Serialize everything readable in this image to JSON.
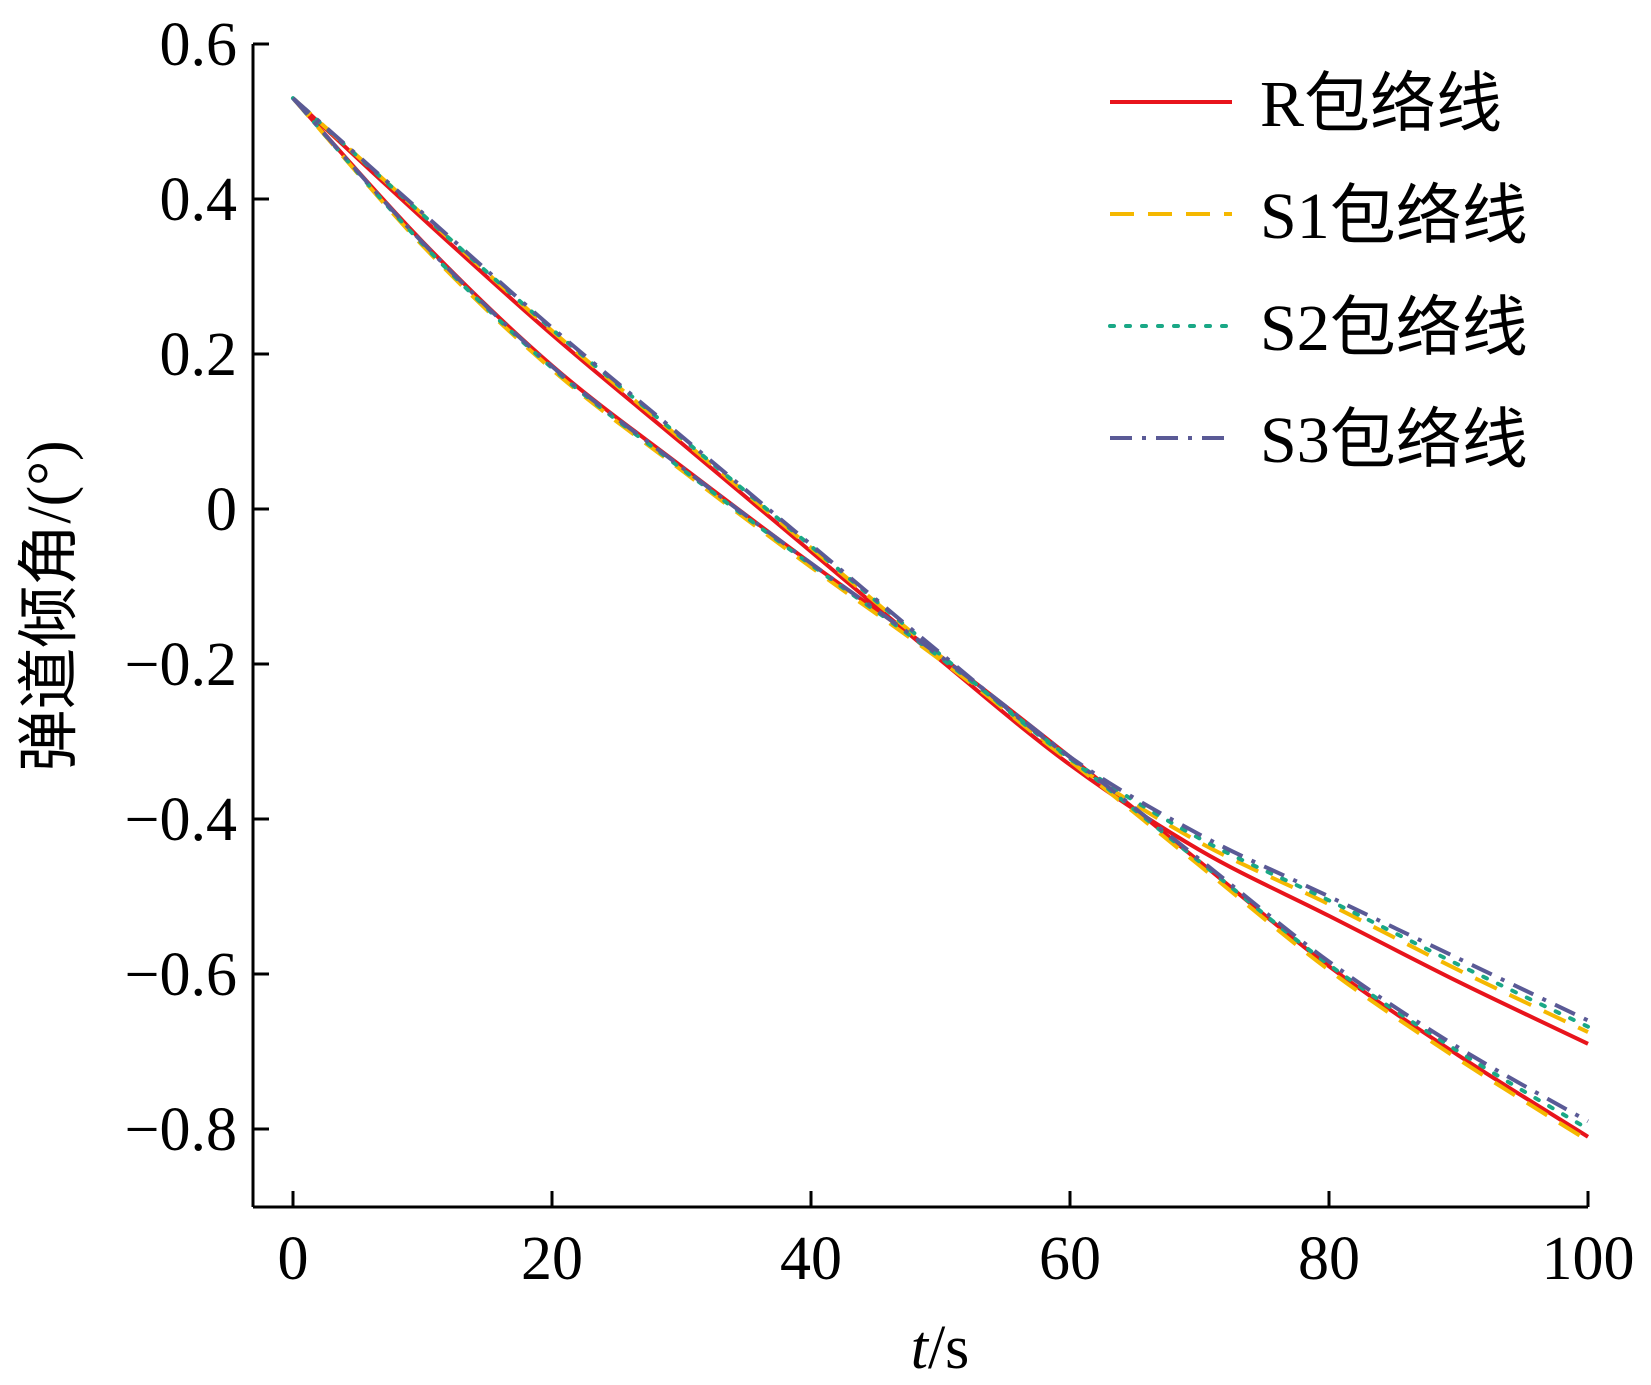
{
  "chart_data": {
    "type": "line",
    "title": "",
    "xlabel_italic": "t",
    "xlabel_unit": "/s",
    "ylabel": "弹道倾角/(°)",
    "xlim": [
      -1.5,
      102
    ],
    "ylim": [
      -0.9,
      0.6
    ],
    "xticks": [
      0,
      20,
      40,
      60,
      80,
      100
    ],
    "yticks": [
      0.6,
      0.4,
      0.2,
      0,
      -0.2,
      -0.4,
      -0.6,
      -0.8
    ],
    "ytick_labels": [
      "0.6",
      "0.4",
      "0.2",
      "0",
      "−0.2",
      "−0.4",
      "−0.6",
      "−0.8"
    ],
    "xtick_labels": [
      "0",
      "20",
      "40",
      "60",
      "80",
      "100"
    ],
    "legend_position": "top-right",
    "grid": false,
    "series": [
      {
        "name": "R包络线",
        "color": "#e8141c",
        "dash": "solid",
        "lower": {
          "x": [
            0,
            10,
            20,
            30,
            40,
            50,
            60,
            70,
            80,
            90,
            100
          ],
          "y": [
            0.53,
            0.345,
            0.185,
            0.055,
            -0.07,
            -0.19,
            -0.32,
            -0.455,
            -0.59,
            -0.705,
            -0.81
          ]
        },
        "upper": {
          "x": [
            0,
            10,
            20,
            30,
            40,
            50,
            60,
            70,
            80,
            90,
            100
          ],
          "y": [
            0.53,
            0.375,
            0.225,
            0.085,
            -0.055,
            -0.195,
            -0.33,
            -0.44,
            -0.525,
            -0.61,
            -0.69
          ]
        }
      },
      {
        "name": "S1包络线",
        "color": "#f5b800",
        "dash": "dashed",
        "lower": {
          "x": [
            0,
            10,
            20,
            30,
            40,
            50,
            60,
            70,
            80,
            90,
            100
          ],
          "y": [
            0.53,
            0.34,
            0.18,
            0.05,
            -0.075,
            -0.195,
            -0.325,
            -0.46,
            -0.595,
            -0.71,
            -0.815
          ]
        },
        "upper": {
          "x": [
            0,
            10,
            20,
            30,
            40,
            50,
            60,
            70,
            80,
            90,
            100
          ],
          "y": [
            0.53,
            0.38,
            0.23,
            0.09,
            -0.05,
            -0.19,
            -0.325,
            -0.43,
            -0.51,
            -0.595,
            -0.675
          ]
        }
      },
      {
        "name": "S2包络线",
        "color": "#1aa886",
        "dash": "dotted",
        "lower": {
          "x": [
            0,
            10,
            20,
            30,
            40,
            50,
            60,
            70,
            80,
            90,
            100
          ],
          "y": [
            0.53,
            0.342,
            0.182,
            0.052,
            -0.072,
            -0.192,
            -0.322,
            -0.455,
            -0.588,
            -0.7,
            -0.8
          ]
        },
        "upper": {
          "x": [
            0,
            10,
            20,
            30,
            40,
            50,
            60,
            70,
            80,
            90,
            100
          ],
          "y": [
            0.53,
            0.38,
            0.232,
            0.092,
            -0.048,
            -0.188,
            -0.322,
            -0.425,
            -0.505,
            -0.588,
            -0.668
          ]
        }
      },
      {
        "name": "S3包络线",
        "color": "#5a5a96",
        "dash": "dashdot",
        "lower": {
          "x": [
            0,
            10,
            20,
            30,
            40,
            50,
            60,
            70,
            80,
            90,
            100
          ],
          "y": [
            0.53,
            0.344,
            0.184,
            0.054,
            -0.07,
            -0.19,
            -0.32,
            -0.452,
            -0.584,
            -0.695,
            -0.79
          ]
        },
        "upper": {
          "x": [
            0,
            10,
            20,
            30,
            40,
            50,
            60,
            70,
            80,
            90,
            100
          ],
          "y": [
            0.53,
            0.382,
            0.234,
            0.094,
            -0.046,
            -0.186,
            -0.32,
            -0.42,
            -0.5,
            -0.58,
            -0.66
          ]
        }
      }
    ]
  }
}
